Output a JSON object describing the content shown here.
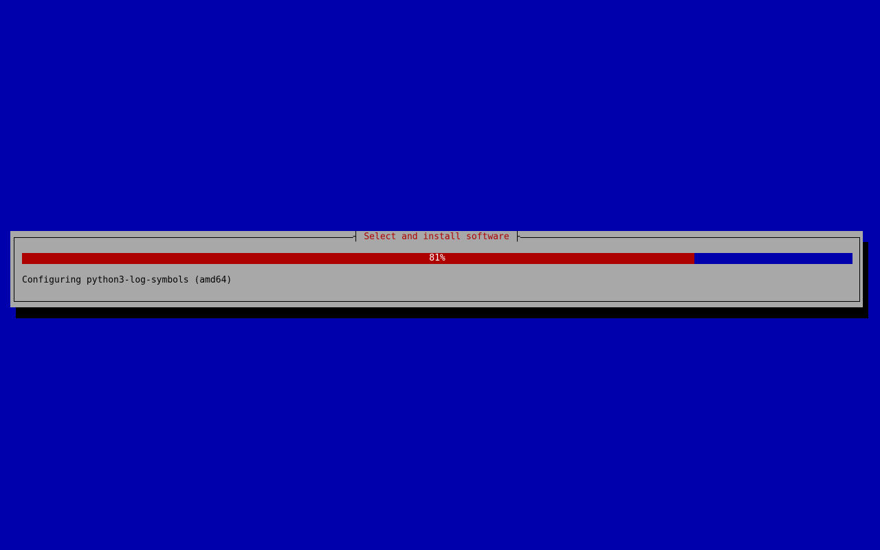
{
  "colors": {
    "background_blue": "#0000AD",
    "dialog_gray": "#A8A8A8",
    "accent_red": "#AD0000",
    "progress_text_white": "#FFFFFF",
    "border_black": "#000000"
  },
  "dialog": {
    "title": "Select and install software",
    "border_glyph_left": "┤ ",
    "border_glyph_right": " ├",
    "progress": {
      "percent": 81,
      "label": "81%"
    },
    "status_text": "Configuring python3-log-symbols (amd64)"
  }
}
